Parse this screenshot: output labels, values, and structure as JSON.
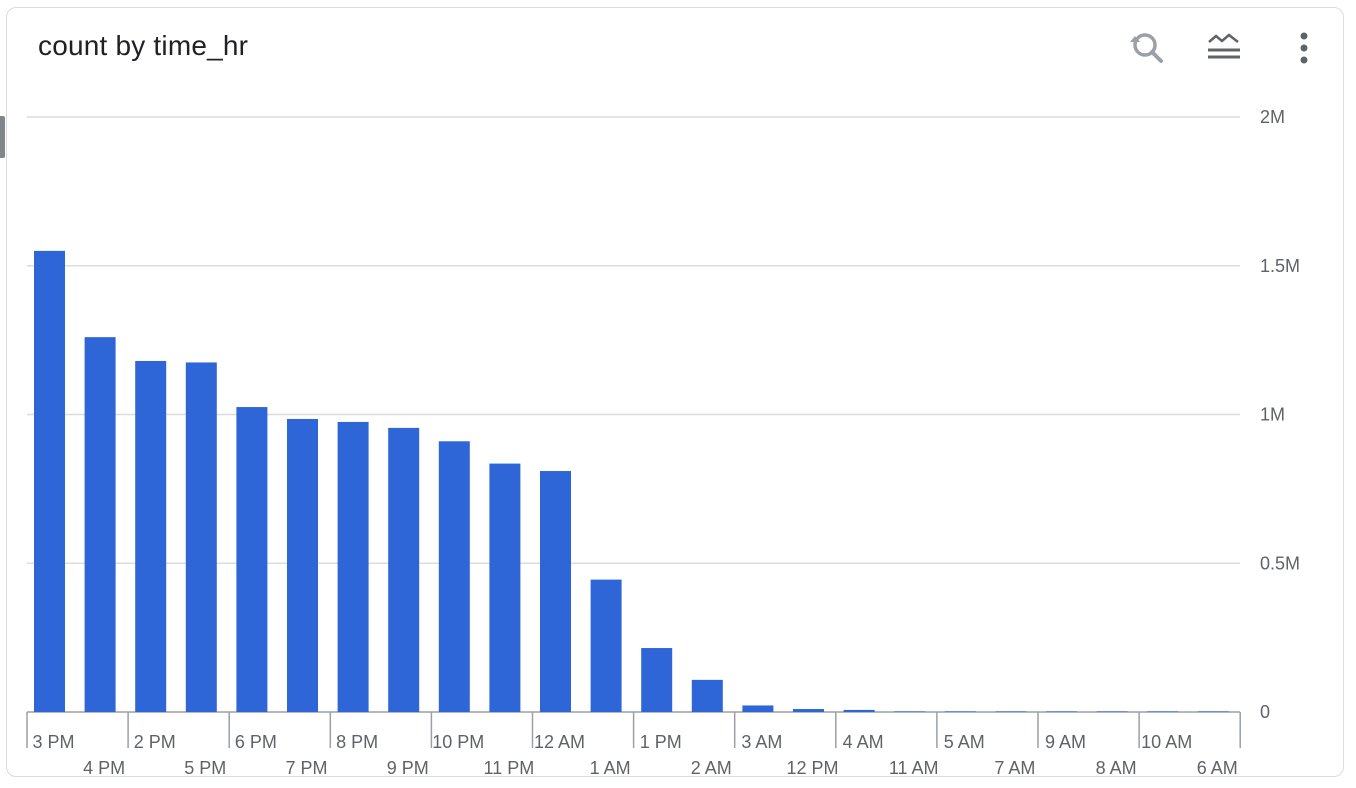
{
  "header": {
    "title": "count by time_hr",
    "icons": [
      "zoom-reset-icon",
      "legend-toggle-icon",
      "more-vert-icon"
    ]
  },
  "colors": {
    "bar": "#2e66d8",
    "grid": "#dadce0",
    "axis": "#5f6368"
  },
  "chart_data": {
    "type": "bar",
    "title": "count by time_hr",
    "xlabel": "",
    "ylabel": "",
    "ylim": [
      0,
      2000000
    ],
    "y_ticks": [
      0,
      500000,
      1000000,
      1500000,
      2000000
    ],
    "y_tick_labels": [
      "0",
      "0.5M",
      "1M",
      "1.5M",
      "2M"
    ],
    "y_axis_side": "right",
    "grid": true,
    "categories": [
      "3 PM",
      "4 PM",
      "2 PM",
      "5 PM",
      "6 PM",
      "7 PM",
      "8 PM",
      "9 PM",
      "10 PM",
      "11 PM",
      "12 AM",
      "1 AM",
      "1 PM",
      "2 AM",
      "3 AM",
      "12 PM",
      "4 AM",
      "11 AM",
      "5 AM",
      "7 AM",
      "9 AM",
      "8 AM",
      "10 AM",
      "6 AM"
    ],
    "values": [
      1550000,
      1260000,
      1180000,
      1175000,
      1025000,
      985000,
      975000,
      955000,
      910000,
      835000,
      810000,
      445000,
      215000,
      108000,
      22000,
      10000,
      7000,
      1000,
      500,
      300,
      200,
      200,
      100,
      100
    ]
  }
}
